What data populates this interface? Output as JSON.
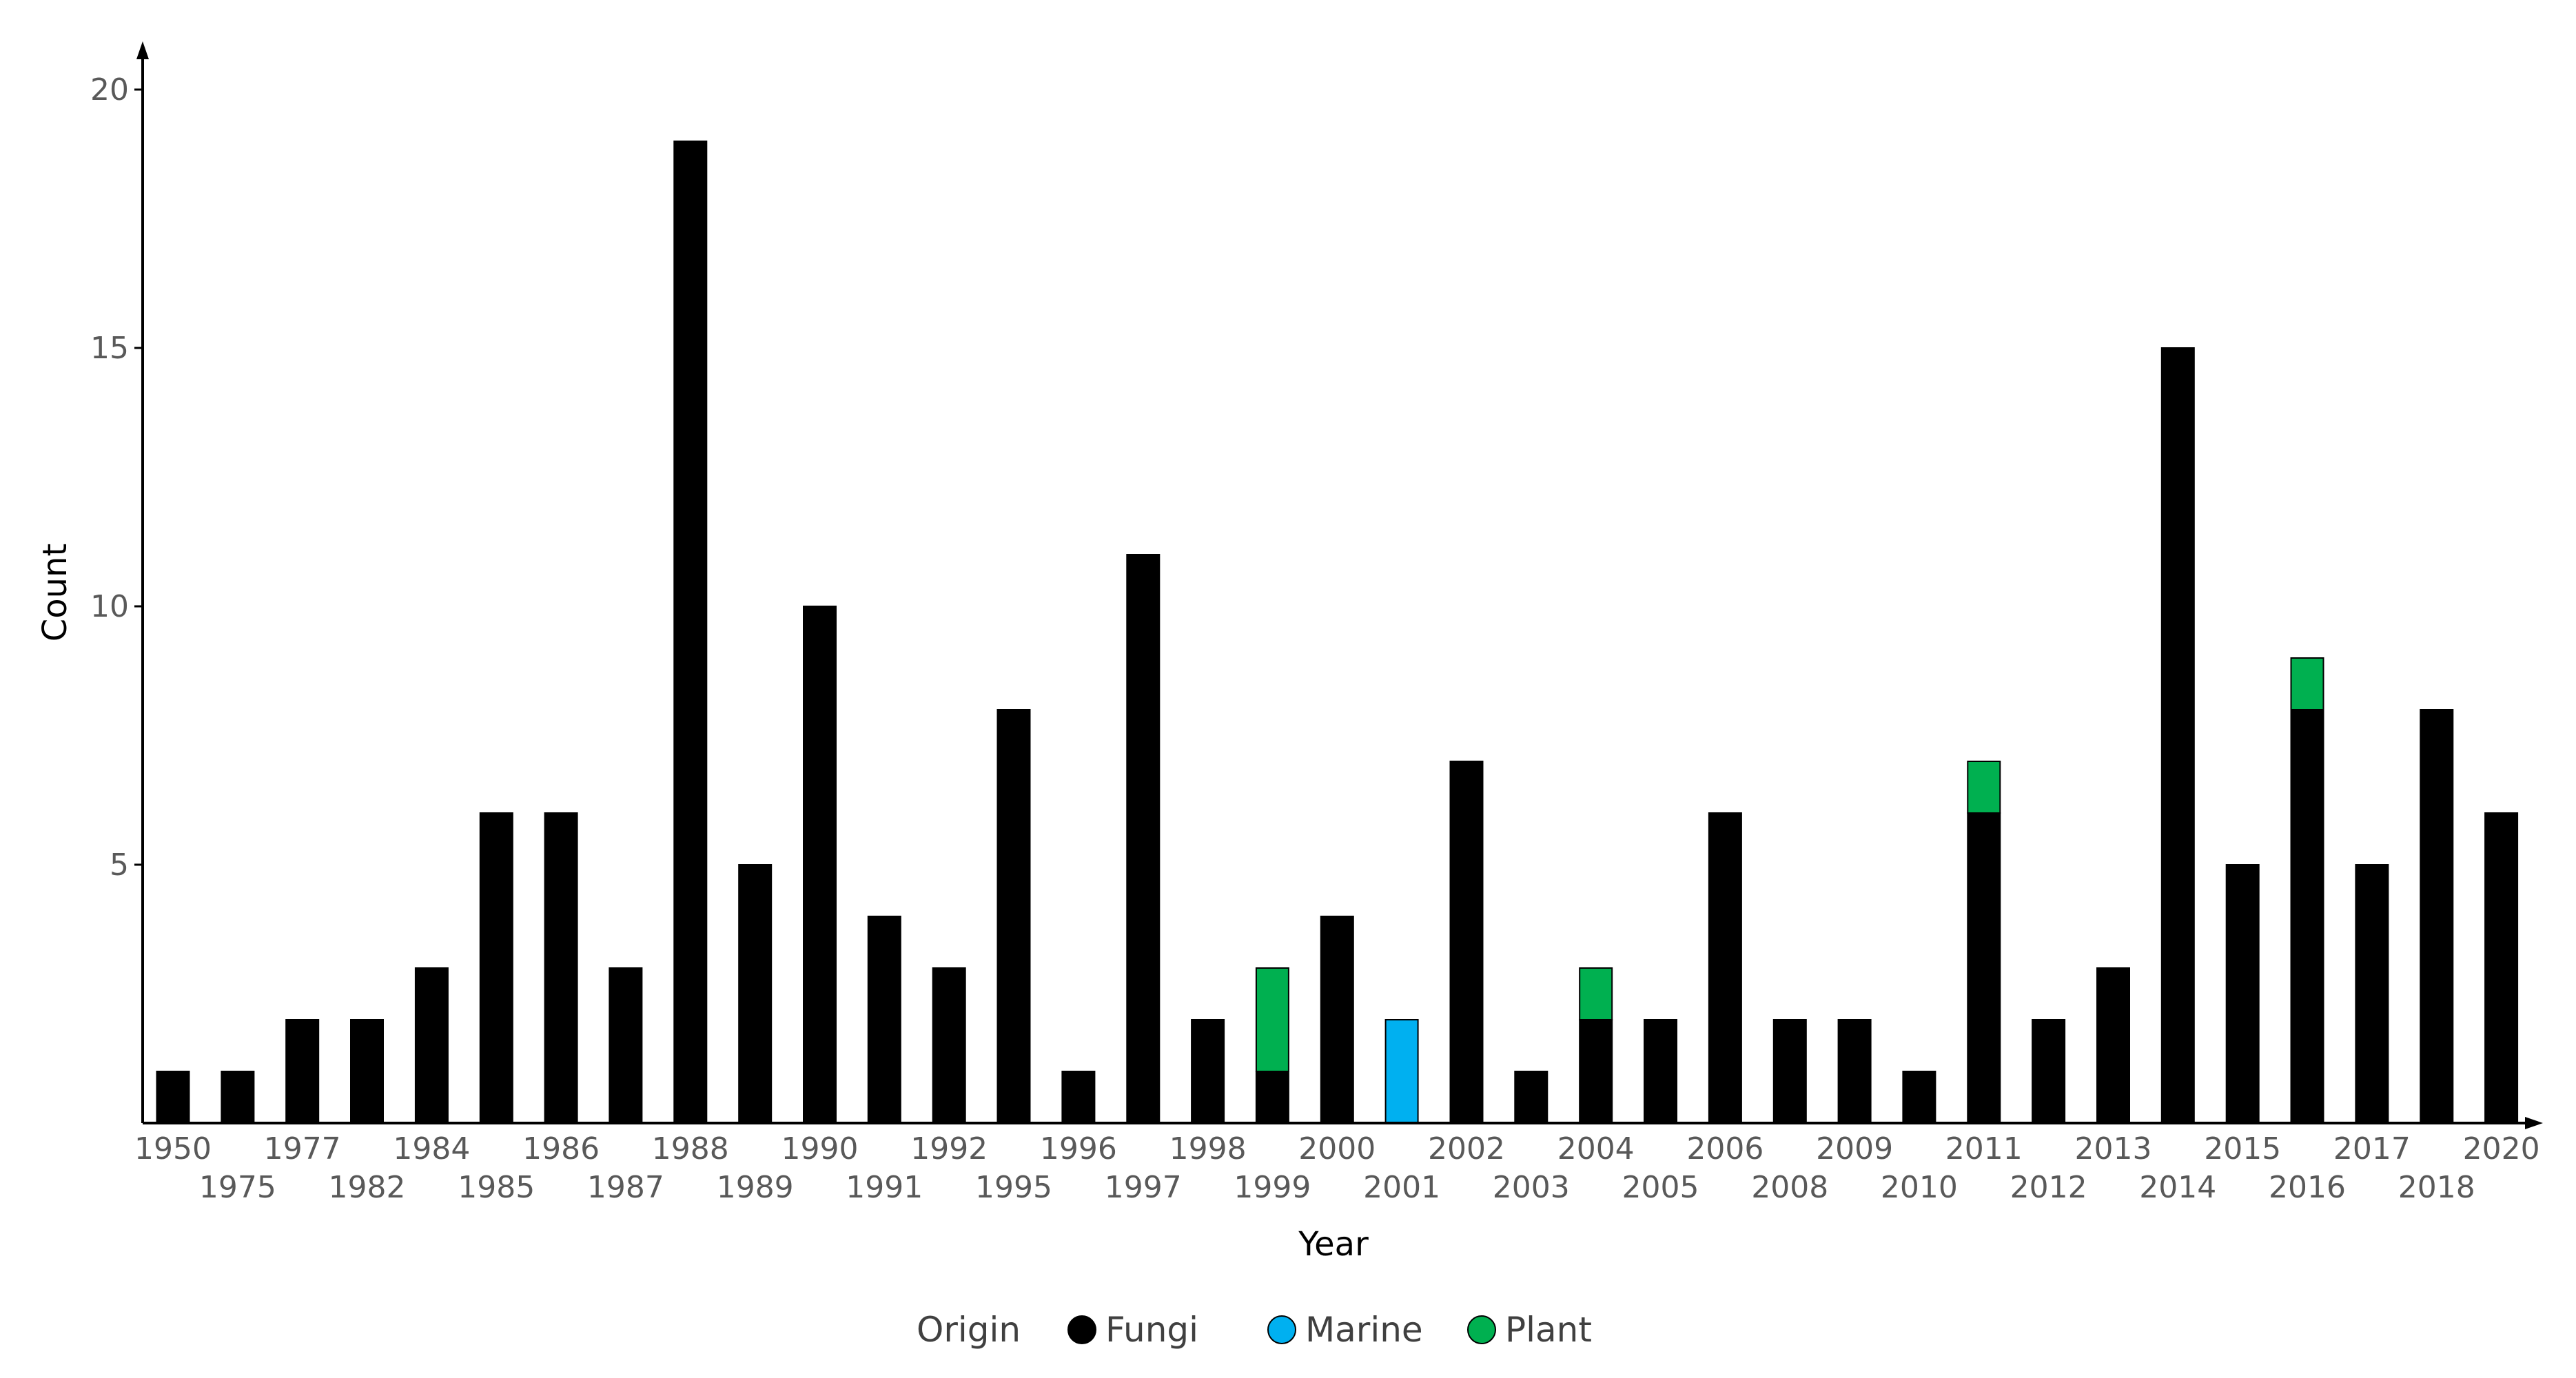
{
  "chart_data": {
    "type": "bar",
    "stacked": true,
    "title": "",
    "xlabel": "Year",
    "ylabel": "Count",
    "ylim": [
      0,
      20
    ],
    "yticks": [
      5,
      10,
      15,
      20
    ],
    "grid": false,
    "legend": {
      "title": "Origin",
      "placement": "bottom-center",
      "entries": [
        "Fungi",
        "Marine",
        "Plant"
      ]
    },
    "categories": [
      "1950",
      "1975",
      "1977",
      "1982",
      "1984",
      "1985",
      "1986",
      "1987",
      "1988",
      "1989",
      "1990",
      "1991",
      "1992",
      "1995",
      "1996",
      "1997",
      "1998",
      "1999",
      "2000",
      "2001",
      "2002",
      "2003",
      "2004",
      "2005",
      "2006",
      "2008",
      "2009",
      "2010",
      "2011",
      "2012",
      "2013",
      "2014",
      "2015",
      "2016",
      "2017",
      "2018",
      "2020"
    ],
    "series": [
      {
        "name": "Fungi",
        "color": "#000000",
        "values": [
          1,
          1,
          2,
          2,
          3,
          6,
          6,
          3,
          19,
          5,
          10,
          4,
          3,
          8,
          1,
          11,
          2,
          1,
          4,
          0,
          7,
          1,
          2,
          2,
          6,
          2,
          2,
          1,
          6,
          2,
          3,
          15,
          5,
          8,
          5,
          8,
          6
        ]
      },
      {
        "name": "Marine",
        "color": "#00b0f0",
        "values": [
          0,
          0,
          0,
          0,
          0,
          0,
          0,
          0,
          0,
          0,
          0,
          0,
          0,
          0,
          0,
          0,
          0,
          0,
          0,
          2,
          0,
          0,
          0,
          0,
          0,
          0,
          0,
          0,
          0,
          0,
          0,
          0,
          0,
          0,
          0,
          0,
          0
        ]
      },
      {
        "name": "Plant",
        "color": "#00b050",
        "values": [
          0,
          0,
          0,
          0,
          0,
          0,
          0,
          0,
          0,
          0,
          0,
          0,
          0,
          0,
          0,
          0,
          0,
          2,
          0,
          0,
          0,
          0,
          1,
          0,
          0,
          0,
          0,
          0,
          1,
          0,
          0,
          0,
          0,
          1,
          0,
          0,
          0
        ]
      }
    ]
  }
}
